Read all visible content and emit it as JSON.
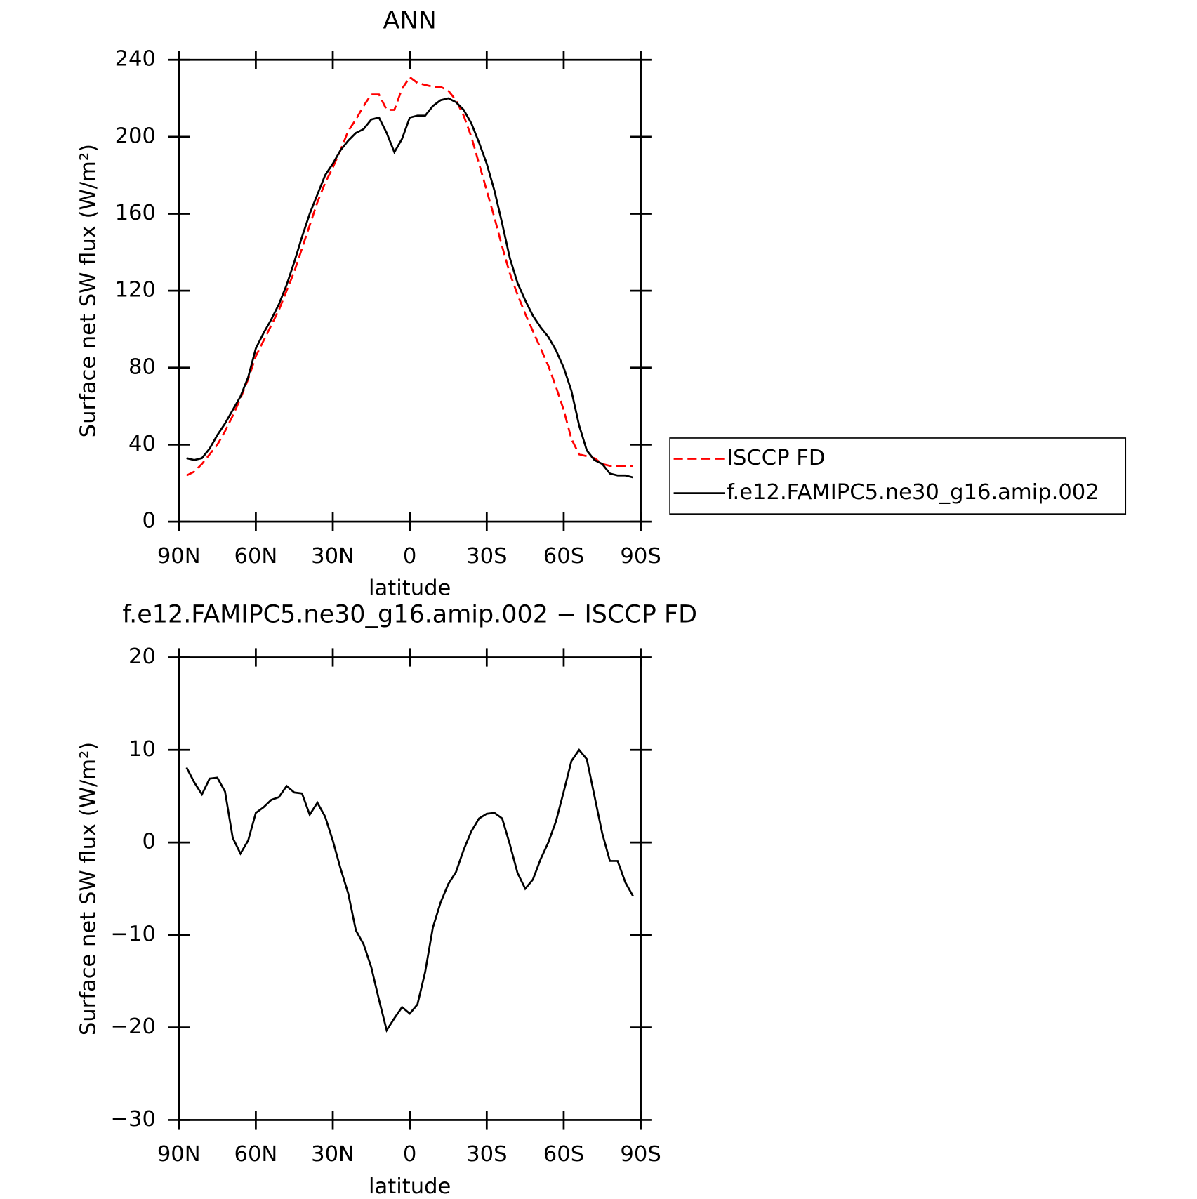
{
  "chart_data": [
    {
      "type": "line",
      "title": "ANN",
      "xlabel": "latitude",
      "ylabel": "Surface net SW flux (W/m²)",
      "x": [
        87,
        84,
        81,
        78,
        75,
        72,
        69,
        66,
        63,
        60,
        57,
        54,
        51,
        48,
        45,
        42,
        39,
        36,
        33,
        30,
        27,
        24,
        21,
        18,
        15,
        12,
        9,
        6,
        3,
        0,
        -3,
        -6,
        -9,
        -12,
        -15,
        -18,
        -21,
        -24,
        -27,
        -30,
        -33,
        -36,
        -39,
        -42,
        -45,
        -48,
        -51,
        -54,
        -57,
        -60,
        -63,
        -66,
        -69,
        -72,
        -75,
        -78,
        -81,
        -84,
        -87
      ],
      "series": [
        {
          "name": "ISCCP FD",
          "color": "#ff0000",
          "dash": true,
          "values": [
            24,
            26,
            30,
            35,
            40,
            47,
            55,
            64,
            74,
            86,
            94,
            102,
            110,
            120,
            130,
            142,
            154,
            166,
            176,
            184,
            193,
            203,
            209,
            216,
            222,
            222,
            214,
            214,
            225,
            231,
            228,
            227,
            226,
            226,
            224,
            219,
            211,
            200,
            186,
            172,
            158,
            143,
            129,
            118,
            108,
            99,
            90,
            81,
            70,
            58,
            43,
            35,
            34,
            33,
            30,
            29,
            29,
            29,
            29
          ]
        },
        {
          "name": "f.e12.FAMIPC5.ne30_g16.amip.002",
          "color": "#000000",
          "dash": false,
          "values": [
            33,
            32,
            33,
            38,
            45,
            51,
            58,
            65,
            75,
            90,
            98,
            105,
            113,
            123,
            135,
            148,
            160,
            170,
            180,
            186,
            193,
            198,
            202,
            204,
            209,
            210,
            202,
            192,
            199,
            210,
            211,
            211,
            216,
            219,
            220,
            218,
            214,
            207,
            197,
            186,
            172,
            155,
            137,
            124,
            115,
            107,
            101,
            96,
            89,
            80,
            68,
            50,
            37,
            32,
            30,
            25,
            24,
            24,
            23
          ]
        }
      ],
      "xlim": [
        90,
        -90
      ],
      "xticks": [
        {
          "value": 90,
          "label": "90N"
        },
        {
          "value": 60,
          "label": "60N"
        },
        {
          "value": 30,
          "label": "30N"
        },
        0,
        {
          "value": -30,
          "label": "30S"
        },
        {
          "value": -60,
          "label": "60S"
        },
        {
          "value": -90,
          "label": "90S"
        }
      ],
      "ylim": [
        0,
        240
      ],
      "yticks": [
        0,
        40,
        80,
        120,
        160,
        200,
        240
      ],
      "legend": "right"
    },
    {
      "type": "line",
      "title": "f.e12.FAMIPC5.ne30_g16.amip.002 − ISCCP FD",
      "xlabel": "latitude",
      "ylabel": "Surface net SW flux (W/m²)",
      "x": [
        87,
        84,
        81,
        78,
        75,
        72,
        69,
        66,
        63,
        60,
        57,
        54,
        51,
        48,
        45,
        42,
        39,
        36,
        33,
        30,
        27,
        24,
        21,
        18,
        15,
        12,
        9,
        6,
        3,
        0,
        -3,
        -6,
        -9,
        -12,
        -15,
        -18,
        -21,
        -24,
        -27,
        -30,
        -33,
        -36,
        -39,
        -42,
        -45,
        -48,
        -51,
        -54,
        -57,
        -60,
        -63,
        -66,
        -69,
        -72,
        -75,
        -78,
        -81,
        -84,
        -87
      ],
      "series": [
        {
          "color": "#000000",
          "dash": false,
          "values": [
            8.1,
            6.5,
            5.2,
            6.9,
            7.0,
            5.5,
            0.5,
            -1.2,
            0.2,
            3.2,
            3.8,
            4.6,
            4.9,
            6.1,
            5.4,
            5.3,
            3.0,
            4.3,
            2.8,
            0.2,
            -2.8,
            -5.5,
            -9.5,
            -11.0,
            -13.5,
            -17.0,
            -20.3,
            -19.0,
            -17.8,
            -18.5,
            -17.5,
            -14.0,
            -9.2,
            -6.5,
            -4.5,
            -3.2,
            -0.8,
            1.2,
            2.6,
            3.1,
            3.2,
            2.6,
            -0.2,
            -3.3,
            -5.0,
            -4.0,
            -1.8,
            0.0,
            2.3,
            5.5,
            8.8,
            10.0,
            9.0,
            5.0,
            1.0,
            -2.0,
            -2.0,
            -4.3,
            -5.8
          ]
        }
      ],
      "xlim": [
        90,
        -90
      ],
      "xticks": [
        {
          "value": 90,
          "label": "90N"
        },
        {
          "value": 60,
          "label": "60N"
        },
        {
          "value": 30,
          "label": "30N"
        },
        0,
        {
          "value": -30,
          "label": "30S"
        },
        {
          "value": -60,
          "label": "60S"
        },
        {
          "value": -90,
          "label": "90S"
        }
      ],
      "ylim": [
        -30,
        20
      ],
      "yticks": [
        {
          "value": -30,
          "label": "−30"
        },
        {
          "value": -20,
          "label": "−20"
        },
        {
          "value": -10,
          "label": "−10"
        },
        0,
        10,
        20
      ]
    }
  ]
}
